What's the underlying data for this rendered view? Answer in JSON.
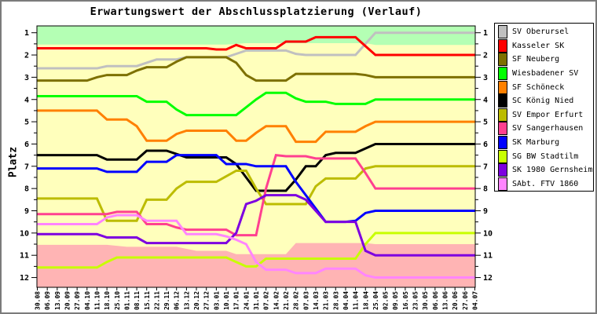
{
  "chart_data": {
    "type": "line",
    "title": "Erwartungswert der Abschlussplatzierung (Verlauf)",
    "ylabel": "Platz",
    "grid": false,
    "legend_position": "right-outside",
    "y_axis": {
      "min": 1,
      "max": 12,
      "direction": "inverted-1-at-top"
    },
    "y_ticks": [
      1,
      2,
      3,
      4,
      5,
      6,
      7,
      8,
      9,
      10,
      11,
      12
    ],
    "x_labels": [
      "30.08",
      "06.09",
      "13.09",
      "20.09",
      "27.09",
      "04.10",
      "11.10",
      "18.10",
      "25.10",
      "01.11",
      "08.11",
      "15.11",
      "22.11",
      "29.11",
      "06.12",
      "13.12",
      "20.12",
      "27.12",
      "03.01",
      "10.01",
      "17.01",
      "24.01",
      "31.01",
      "07.02",
      "14.02",
      "21.02",
      "28.02",
      "07.03",
      "14.03",
      "21.03",
      "28.03",
      "04.04",
      "11.04",
      "18.04",
      "25.04",
      "02.05",
      "09.05",
      "16.05",
      "23.05",
      "30.05",
      "06.06",
      "13.06",
      "20.06",
      "27.06",
      "04.07"
    ],
    "zones": {
      "promotion": {
        "color": "#b4ffb4",
        "boundary": [
          [
            0,
            1.53
          ],
          [
            19,
            1.53
          ],
          [
            21,
            1.47
          ],
          [
            33,
            1.47
          ],
          [
            34,
            1.55
          ],
          [
            44,
            1.55
          ]
        ]
      },
      "midfield": {
        "color": "#ffffbc"
      },
      "relegation": {
        "color": "#ffb4b4",
        "boundary": [
          [
            0,
            10.53
          ],
          [
            7,
            10.53
          ],
          [
            9,
            10.62
          ],
          [
            14,
            10.62
          ],
          [
            16,
            10.8
          ],
          [
            19,
            10.8
          ],
          [
            20,
            10.95
          ],
          [
            25,
            10.95
          ],
          [
            26,
            10.45
          ],
          [
            33,
            10.45
          ],
          [
            34,
            10.5
          ],
          [
            44,
            10.5
          ]
        ]
      }
    },
    "series": [
      {
        "name": "SV Oberursel",
        "color": "#c0c0c0",
        "values": [
          2.6,
          2.6,
          2.6,
          2.6,
          2.6,
          2.6,
          2.6,
          2.5,
          2.5,
          2.5,
          2.5,
          2.35,
          2.2,
          2.2,
          2.2,
          2.1,
          2.1,
          2.1,
          2.1,
          2.1,
          1.95,
          1.8,
          1.8,
          1.8,
          1.8,
          1.8,
          1.95,
          2.0,
          2.0,
          2.0,
          2.0,
          2.0,
          2.0,
          1.5,
          1.0,
          1.0,
          1.0,
          1.0,
          1.0,
          1.0,
          1.0,
          1.0,
          1.0,
          1.0,
          1.0
        ]
      },
      {
        "name": "Kasseler SK",
        "color": "#ff0000",
        "values": [
          1.7,
          1.7,
          1.7,
          1.7,
          1.7,
          1.7,
          1.7,
          1.7,
          1.7,
          1.7,
          1.7,
          1.7,
          1.7,
          1.7,
          1.7,
          1.7,
          1.7,
          1.7,
          1.75,
          1.75,
          1.55,
          1.7,
          1.7,
          1.7,
          1.7,
          1.4,
          1.4,
          1.4,
          1.2,
          1.2,
          1.2,
          1.2,
          1.2,
          1.6,
          2.0,
          2.0,
          2.0,
          2.0,
          2.0,
          2.0,
          2.0,
          2.0,
          2.0,
          2.0,
          2.0
        ]
      },
      {
        "name": "SF Neuberg",
        "color": "#7d7000",
        "values": [
          3.15,
          3.15,
          3.15,
          3.15,
          3.15,
          3.15,
          3.0,
          2.9,
          2.9,
          2.9,
          2.7,
          2.55,
          2.55,
          2.55,
          2.3,
          2.1,
          2.1,
          2.1,
          2.1,
          2.1,
          2.35,
          2.9,
          3.15,
          3.15,
          3.15,
          3.15,
          2.85,
          2.85,
          2.85,
          2.85,
          2.85,
          2.85,
          2.85,
          2.9,
          3.0,
          3.0,
          3.0,
          3.0,
          3.0,
          3.0,
          3.0,
          3.0,
          3.0,
          3.0,
          3.0
        ]
      },
      {
        "name": "Wiesbadener SV",
        "color": "#00ff00",
        "values": [
          3.85,
          3.85,
          3.85,
          3.85,
          3.85,
          3.85,
          3.85,
          3.85,
          3.85,
          3.85,
          3.85,
          4.1,
          4.1,
          4.1,
          4.45,
          4.7,
          4.7,
          4.7,
          4.7,
          4.7,
          4.7,
          4.35,
          4.0,
          3.7,
          3.7,
          3.7,
          3.95,
          4.1,
          4.1,
          4.1,
          4.2,
          4.2,
          4.2,
          4.2,
          4.0,
          4.0,
          4.0,
          4.0,
          4.0,
          4.0,
          4.0,
          4.0,
          4.0,
          4.0,
          4.0
        ]
      },
      {
        "name": "SF Schöneck",
        "color": "#ff8000",
        "values": [
          4.5,
          4.5,
          4.5,
          4.5,
          4.5,
          4.5,
          4.5,
          4.9,
          4.9,
          4.9,
          5.2,
          5.85,
          5.85,
          5.85,
          5.55,
          5.4,
          5.4,
          5.4,
          5.4,
          5.4,
          5.85,
          5.85,
          5.5,
          5.2,
          5.2,
          5.2,
          5.9,
          5.9,
          5.9,
          5.45,
          5.45,
          5.45,
          5.45,
          5.2,
          5.0,
          5.0,
          5.0,
          5.0,
          5.0,
          5.0,
          5.0,
          5.0,
          5.0,
          5.0,
          5.0
        ]
      },
      {
        "name": "SC König Nied",
        "color": "#000000",
        "values": [
          6.5,
          6.5,
          6.5,
          6.5,
          6.5,
          6.5,
          6.5,
          6.7,
          6.7,
          6.7,
          6.7,
          6.3,
          6.3,
          6.3,
          6.45,
          6.6,
          6.6,
          6.6,
          6.6,
          6.6,
          6.9,
          7.5,
          8.1,
          8.1,
          8.1,
          8.1,
          7.6,
          7.0,
          7.0,
          6.5,
          6.4,
          6.4,
          6.4,
          6.2,
          6.0,
          6.0,
          6.0,
          6.0,
          6.0,
          6.0,
          6.0,
          6.0,
          6.0,
          6.0,
          6.0
        ]
      },
      {
        "name": "SV Empor Erfurt",
        "color": "#bcbc00",
        "values": [
          8.45,
          8.45,
          8.45,
          8.45,
          8.45,
          8.45,
          8.45,
          9.45,
          9.45,
          9.45,
          9.45,
          8.5,
          8.5,
          8.5,
          8.0,
          7.7,
          7.7,
          7.7,
          7.7,
          7.45,
          7.2,
          7.2,
          8.0,
          8.7,
          8.7,
          8.7,
          8.7,
          8.7,
          7.9,
          7.55,
          7.55,
          7.55,
          7.55,
          7.1,
          7.0,
          7.0,
          7.0,
          7.0,
          7.0,
          7.0,
          7.0,
          7.0,
          7.0,
          7.0,
          7.0
        ]
      },
      {
        "name": "SV Sangerhausen",
        "color": "#ff4090",
        "values": [
          9.15,
          9.15,
          9.15,
          9.15,
          9.15,
          9.15,
          9.15,
          9.15,
          9.05,
          9.05,
          9.05,
          9.6,
          9.6,
          9.6,
          9.75,
          9.85,
          9.85,
          9.85,
          9.85,
          9.85,
          10.1,
          10.1,
          10.1,
          8.0,
          6.5,
          6.55,
          6.55,
          6.55,
          6.65,
          6.65,
          6.65,
          6.65,
          6.65,
          7.3,
          8.0,
          8.0,
          8.0,
          8.0,
          8.0,
          8.0,
          8.0,
          8.0,
          8.0,
          8.0,
          8.0
        ]
      },
      {
        "name": "SK Marburg",
        "color": "#0000ff",
        "values": [
          7.1,
          7.1,
          7.1,
          7.1,
          7.1,
          7.1,
          7.1,
          7.25,
          7.25,
          7.25,
          7.25,
          6.8,
          6.8,
          6.8,
          6.5,
          6.5,
          6.5,
          6.5,
          6.5,
          6.9,
          6.9,
          6.9,
          7.0,
          7.0,
          7.0,
          7.0,
          7.7,
          8.3,
          8.9,
          9.5,
          9.5,
          9.5,
          9.45,
          9.1,
          9.0,
          9.0,
          9.0,
          9.0,
          9.0,
          9.0,
          9.0,
          9.0,
          9.0,
          9.0,
          9.0
        ]
      },
      {
        "name": "SG BW Stadtilm",
        "color": "#c8ff00",
        "values": [
          11.55,
          11.55,
          11.55,
          11.55,
          11.55,
          11.55,
          11.55,
          11.3,
          11.1,
          11.1,
          11.1,
          11.1,
          11.1,
          11.1,
          11.1,
          11.1,
          11.1,
          11.1,
          11.1,
          11.1,
          11.3,
          11.5,
          11.5,
          11.15,
          11.15,
          11.15,
          11.15,
          11.15,
          11.15,
          11.15,
          11.15,
          11.15,
          11.15,
          10.5,
          10.0,
          10.0,
          10.0,
          10.0,
          10.0,
          10.0,
          10.0,
          10.0,
          10.0,
          10.0,
          10.0
        ]
      },
      {
        "name": "SK 1980 Gernsheim",
        "color": "#7d00e0",
        "values": [
          10.05,
          10.05,
          10.05,
          10.05,
          10.05,
          10.05,
          10.05,
          10.2,
          10.2,
          10.2,
          10.2,
          10.45,
          10.45,
          10.45,
          10.45,
          10.45,
          10.45,
          10.45,
          10.45,
          10.45,
          10.0,
          8.7,
          8.55,
          8.3,
          8.3,
          8.3,
          8.3,
          8.5,
          9.0,
          9.5,
          9.5,
          9.5,
          9.5,
          10.8,
          11.0,
          11.0,
          11.0,
          11.0,
          11.0,
          11.0,
          11.0,
          11.0,
          11.0,
          11.0,
          11.0
        ]
      },
      {
        "name": "SAbt. FTV 1860",
        "color": "#ff85ff",
        "values": [
          9.6,
          9.6,
          9.6,
          9.6,
          9.6,
          9.6,
          9.6,
          9.3,
          9.2,
          9.2,
          9.2,
          9.45,
          9.45,
          9.45,
          9.45,
          10.05,
          10.05,
          10.05,
          10.05,
          10.15,
          10.3,
          10.5,
          11.3,
          11.65,
          11.65,
          11.65,
          11.8,
          11.8,
          11.8,
          11.6,
          11.6,
          11.6,
          11.6,
          11.9,
          12.0,
          12.0,
          12.0,
          12.0,
          12.0,
          12.0,
          12.0,
          12.0,
          12.0,
          12.0,
          12.0
        ]
      }
    ]
  }
}
